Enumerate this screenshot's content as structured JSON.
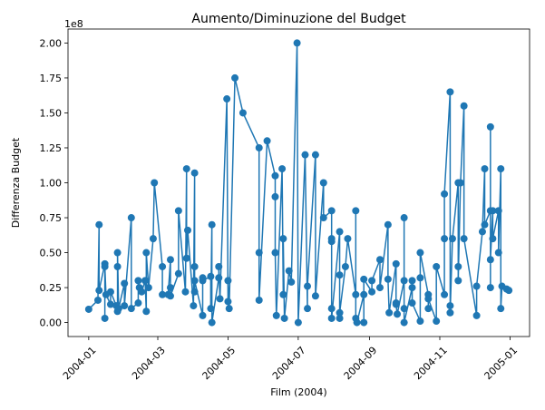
{
  "chart_data": {
    "type": "line",
    "title": "Aumento/Diminuzione del Budget",
    "xlabel": "Film (2004)",
    "ylabel": "Differenza Budget",
    "y_scale_label": "1e8",
    "x_ticks": [
      "2004-01",
      "2004-03",
      "2004-05",
      "2004-07",
      "2004-09",
      "2004-11",
      "2005-01"
    ],
    "y_ticks": [
      "0.00",
      "0.25",
      "0.50",
      "0.75",
      "1.00",
      "1.25",
      "1.50",
      "1.75",
      "2.00"
    ],
    "xlim": [
      "2003-12-14",
      "2005-01-18"
    ],
    "ylim": [
      -10000000,
      210000000
    ],
    "grid": false,
    "legend": "none",
    "series": [
      {
        "color": "#1f77b4",
        "marker": "circle",
        "points": [
          [
            "2004-01-01",
            9500000
          ],
          [
            "2004-01-09",
            16000000
          ],
          [
            "2004-01-10",
            70000000
          ],
          [
            "2004-01-10",
            23000000
          ],
          [
            "2004-01-15",
            42000000
          ],
          [
            "2004-01-15",
            3000000
          ],
          [
            "2004-01-15",
            40000000
          ],
          [
            "2004-01-16",
            20000000
          ],
          [
            "2004-01-20",
            13000000
          ],
          [
            "2004-01-20",
            22000000
          ],
          [
            "2004-01-25",
            12000000
          ],
          [
            "2004-01-26",
            8000000
          ],
          [
            "2004-01-26",
            40000000
          ],
          [
            "2004-01-26",
            50000000
          ],
          [
            "2004-01-27",
            10000000
          ],
          [
            "2004-02-01",
            28000000
          ],
          [
            "2004-02-01",
            12000000
          ],
          [
            "2004-02-07",
            75000000
          ],
          [
            "2004-02-07",
            10000000
          ],
          [
            "2004-02-13",
            14000000
          ],
          [
            "2004-02-13",
            30000000
          ],
          [
            "2004-02-14",
            25000000
          ],
          [
            "2004-02-16",
            22000000
          ],
          [
            "2004-02-19",
            30000000
          ],
          [
            "2004-02-20",
            8000000
          ],
          [
            "2004-02-20",
            50000000
          ],
          [
            "2004-02-22",
            25000000
          ],
          [
            "2004-02-26",
            60000000
          ],
          [
            "2004-02-27",
            100000000
          ],
          [
            "2004-03-05",
            40000000
          ],
          [
            "2004-03-05",
            20000000
          ],
          [
            "2004-03-10",
            20000000
          ],
          [
            "2004-03-12",
            45000000
          ],
          [
            "2004-03-12",
            25000000
          ],
          [
            "2004-03-12",
            19000000
          ],
          [
            "2004-03-19",
            35000000
          ],
          [
            "2004-03-19",
            80000000
          ],
          [
            "2004-03-25",
            22000000
          ],
          [
            "2004-03-26",
            110000000
          ],
          [
            "2004-03-26",
            46000000
          ],
          [
            "2004-03-27",
            66000000
          ],
          [
            "2004-04-01",
            12000000
          ],
          [
            "2004-04-02",
            107000000
          ],
          [
            "2004-04-02",
            40000000
          ],
          [
            "2004-04-02",
            22000000
          ],
          [
            "2004-04-02",
            30000000
          ],
          [
            "2004-04-09",
            5000000
          ],
          [
            "2004-04-09",
            32000000
          ],
          [
            "2004-04-09",
            30000000
          ],
          [
            "2004-04-16",
            33000000
          ],
          [
            "2004-04-16",
            10000000
          ],
          [
            "2004-04-17",
            70000000
          ],
          [
            "2004-04-17",
            0
          ],
          [
            "2004-04-23",
            32000000
          ],
          [
            "2004-04-23",
            40000000
          ],
          [
            "2004-04-24",
            17000000
          ],
          [
            "2004-04-30",
            160000000
          ],
          [
            "2004-05-01",
            15000000
          ],
          [
            "2004-05-01",
            30000000
          ],
          [
            "2004-05-02",
            10000000
          ],
          [
            "2004-05-07",
            175000000
          ],
          [
            "2004-05-14",
            150000000
          ],
          [
            "2004-05-28",
            125000000
          ],
          [
            "2004-05-28",
            50000000
          ],
          [
            "2004-05-28",
            16000000
          ],
          [
            "2004-06-04",
            130000000
          ],
          [
            "2004-06-11",
            105000000
          ],
          [
            "2004-06-11",
            90000000
          ],
          [
            "2004-06-11",
            50000000
          ],
          [
            "2004-06-12",
            5000000
          ],
          [
            "2004-06-17",
            110000000
          ],
          [
            "2004-06-18",
            20000000
          ],
          [
            "2004-06-18",
            60000000
          ],
          [
            "2004-06-19",
            3000000
          ],
          [
            "2004-06-23",
            37000000
          ],
          [
            "2004-06-25",
            29000000
          ],
          [
            "2004-06-30",
            200000000
          ],
          [
            "2004-07-01",
            0
          ],
          [
            "2004-07-07",
            120000000
          ],
          [
            "2004-07-09",
            10000000
          ],
          [
            "2004-07-09",
            26000000
          ],
          [
            "2004-07-16",
            120000000
          ],
          [
            "2004-07-16",
            19000000
          ],
          [
            "2004-07-23",
            100000000
          ],
          [
            "2004-07-23",
            75000000
          ],
          [
            "2004-07-30",
            80000000
          ],
          [
            "2004-07-30",
            60000000
          ],
          [
            "2004-07-30",
            58000000
          ],
          [
            "2004-07-30",
            10000000
          ],
          [
            "2004-07-30",
            3000000
          ],
          [
            "2004-08-06",
            65000000
          ],
          [
            "2004-08-06",
            34000000
          ],
          [
            "2004-08-06",
            3000000
          ],
          [
            "2004-08-06",
            7000000
          ],
          [
            "2004-08-11",
            40000000
          ],
          [
            "2004-08-13",
            60000000
          ],
          [
            "2004-08-20",
            20000000
          ],
          [
            "2004-08-20",
            80000000
          ],
          [
            "2004-08-20",
            3000000
          ],
          [
            "2004-08-21",
            0
          ],
          [
            "2004-08-27",
            20000000
          ],
          [
            "2004-08-27",
            0
          ],
          [
            "2004-08-27",
            31000000
          ],
          [
            "2004-09-03",
            22000000
          ],
          [
            "2004-09-03",
            30000000
          ],
          [
            "2004-09-10",
            45000000
          ],
          [
            "2004-09-10",
            25000000
          ],
          [
            "2004-09-17",
            70000000
          ],
          [
            "2004-09-17",
            31000000
          ],
          [
            "2004-09-18",
            7000000
          ],
          [
            "2004-09-24",
            42000000
          ],
          [
            "2004-09-24",
            14000000
          ],
          [
            "2004-09-24",
            13000000
          ],
          [
            "2004-09-25",
            6000000
          ],
          [
            "2004-10-01",
            30000000
          ],
          [
            "2004-10-01",
            75000000
          ],
          [
            "2004-10-01",
            10000000
          ],
          [
            "2004-10-01",
            0
          ],
          [
            "2004-10-08",
            25000000
          ],
          [
            "2004-10-08",
            30000000
          ],
          [
            "2004-10-08",
            14000000
          ],
          [
            "2004-10-15",
            1000000
          ],
          [
            "2004-10-15",
            32000000
          ],
          [
            "2004-10-15",
            50000000
          ],
          [
            "2004-10-22",
            20000000
          ],
          [
            "2004-10-22",
            10000000
          ],
          [
            "2004-10-22",
            17000000
          ],
          [
            "2004-10-29",
            1000000
          ],
          [
            "2004-10-29",
            40000000
          ],
          [
            "2004-11-05",
            20000000
          ],
          [
            "2004-11-05",
            60000000
          ],
          [
            "2004-11-05",
            92000000
          ],
          [
            "2004-11-10",
            165000000
          ],
          [
            "2004-11-10",
            12000000
          ],
          [
            "2004-11-10",
            7000000
          ],
          [
            "2004-11-12",
            60000000
          ],
          [
            "2004-11-17",
            100000000
          ],
          [
            "2004-11-17",
            40000000
          ],
          [
            "2004-11-17",
            30000000
          ],
          [
            "2004-11-19",
            100000000
          ],
          [
            "2004-11-22",
            155000000
          ],
          [
            "2004-11-22",
            60000000
          ],
          [
            "2004-12-03",
            5000000
          ],
          [
            "2004-12-03",
            26000000
          ],
          [
            "2004-12-08",
            65000000
          ],
          [
            "2004-12-10",
            110000000
          ],
          [
            "2004-12-10",
            70000000
          ],
          [
            "2004-12-15",
            80000000
          ],
          [
            "2004-12-15",
            140000000
          ],
          [
            "2004-12-15",
            25000000
          ],
          [
            "2004-12-15",
            45000000
          ],
          [
            "2004-12-17",
            80000000
          ],
          [
            "2004-12-17",
            60000000
          ],
          [
            "2004-12-22",
            80000000
          ],
          [
            "2004-12-22",
            50000000
          ],
          [
            "2004-12-24",
            110000000
          ],
          [
            "2004-12-24",
            10000000
          ],
          [
            "2004-12-25",
            26000000
          ],
          [
            "2004-12-29",
            24000000
          ],
          [
            "2004-12-31",
            23000000
          ]
        ]
      }
    ]
  }
}
